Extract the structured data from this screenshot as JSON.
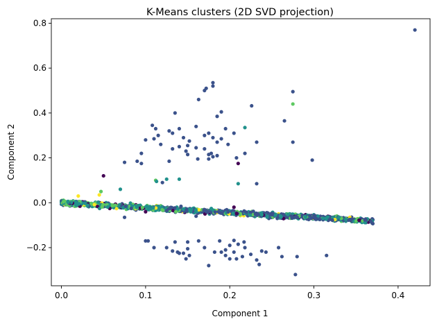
{
  "chart_data": {
    "type": "scatter",
    "title": "K-Means clusters (2D SVD projection)",
    "xlabel": "Component 1",
    "ylabel": "Component 2",
    "xlim": [
      -0.012,
      0.438
    ],
    "ylim": [
      -0.37,
      0.82
    ],
    "xticks": [
      0.0,
      0.1,
      0.2,
      0.3,
      0.4
    ],
    "xtick_labels": [
      "0.0",
      "0.1",
      "0.2",
      "0.3",
      "0.4"
    ],
    "yticks": [
      -0.2,
      0.0,
      0.2,
      0.4,
      0.6,
      0.8
    ],
    "ytick_labels": [
      "−0.2",
      "0.0",
      "0.2",
      "0.4",
      "0.6",
      "0.8"
    ],
    "grid": false,
    "colors": {
      "c0": "#440154",
      "c1": "#3b528b",
      "c2": "#21918c",
      "c3": "#5ec962",
      "c4": "#fde725"
    },
    "upper_arm": [
      [
        0.42,
        0.77
      ],
      [
        0.17,
        0.5
      ],
      [
        0.172,
        0.51
      ],
      [
        0.18,
        0.535
      ],
      [
        0.18,
        0.52
      ],
      [
        0.163,
        0.46
      ],
      [
        0.275,
        0.495
      ],
      [
        0.135,
        0.4
      ],
      [
        0.19,
        0.405
      ],
      [
        0.185,
        0.385
      ],
      [
        0.226,
        0.432
      ],
      [
        0.265,
        0.365
      ],
      [
        0.128,
        0.32
      ],
      [
        0.14,
        0.33
      ],
      [
        0.16,
        0.34
      ],
      [
        0.175,
        0.31
      ],
      [
        0.195,
        0.33
      ],
      [
        0.205,
        0.31
      ],
      [
        0.132,
        0.31
      ],
      [
        0.108,
        0.345
      ],
      [
        0.112,
        0.33
      ],
      [
        0.115,
        0.3
      ],
      [
        0.145,
        0.29
      ],
      [
        0.152,
        0.275
      ],
      [
        0.17,
        0.3
      ],
      [
        0.18,
        0.29
      ],
      [
        0.19,
        0.285
      ],
      [
        0.11,
        0.285
      ],
      [
        0.1,
        0.28
      ],
      [
        0.118,
        0.26
      ],
      [
        0.15,
        0.255
      ],
      [
        0.16,
        0.245
      ],
      [
        0.185,
        0.27
      ],
      [
        0.198,
        0.26
      ],
      [
        0.232,
        0.27
      ],
      [
        0.275,
        0.27
      ],
      [
        0.132,
        0.24
      ],
      [
        0.14,
        0.25
      ],
      [
        0.148,
        0.23
      ],
      [
        0.095,
        0.22
      ],
      [
        0.17,
        0.24
      ],
      [
        0.178,
        0.22
      ],
      [
        0.185,
        0.21
      ],
      [
        0.18,
        0.205
      ],
      [
        0.175,
        0.195
      ],
      [
        0.09,
        0.185
      ],
      [
        0.095,
        0.175
      ],
      [
        0.075,
        0.18
      ],
      [
        0.128,
        0.185
      ],
      [
        0.175,
        0.215
      ],
      [
        0.208,
        0.2
      ],
      [
        0.218,
        0.22
      ],
      [
        0.298,
        0.19
      ],
      [
        0.15,
        0.215
      ],
      [
        0.162,
        0.195
      ]
    ],
    "lower_arm": [
      [
        0.1,
        -0.17
      ],
      [
        0.103,
        -0.17
      ],
      [
        0.135,
        -0.175
      ],
      [
        0.15,
        -0.175
      ],
      [
        0.163,
        -0.17
      ],
      [
        0.188,
        -0.17
      ],
      [
        0.205,
        -0.168
      ],
      [
        0.217,
        -0.175
      ],
      [
        0.125,
        -0.2
      ],
      [
        0.15,
        -0.205
      ],
      [
        0.17,
        -0.2
      ],
      [
        0.2,
        -0.19
      ],
      [
        0.21,
        -0.185
      ],
      [
        0.218,
        -0.2
      ],
      [
        0.258,
        -0.2
      ],
      [
        0.19,
        -0.22
      ],
      [
        0.195,
        -0.21
      ],
      [
        0.238,
        -0.215
      ],
      [
        0.14,
        -0.225
      ],
      [
        0.145,
        -0.225
      ],
      [
        0.182,
        -0.22
      ],
      [
        0.205,
        -0.22
      ],
      [
        0.225,
        -0.23
      ],
      [
        0.11,
        -0.2
      ],
      [
        0.132,
        -0.215
      ],
      [
        0.138,
        -0.22
      ],
      [
        0.152,
        -0.235
      ],
      [
        0.195,
        -0.235
      ],
      [
        0.215,
        -0.24
      ],
      [
        0.243,
        -0.22
      ],
      [
        0.148,
        -0.25
      ],
      [
        0.2,
        -0.25
      ],
      [
        0.208,
        -0.25
      ],
      [
        0.232,
        -0.255
      ],
      [
        0.28,
        -0.24
      ],
      [
        0.315,
        -0.235
      ],
      [
        0.262,
        -0.24
      ],
      [
        0.175,
        -0.28
      ],
      [
        0.235,
        -0.275
      ],
      [
        0.278,
        -0.32
      ]
    ],
    "band_x_range": [
      0.0,
      0.37
    ],
    "band_count": 1400,
    "band_seed": 1234
  }
}
